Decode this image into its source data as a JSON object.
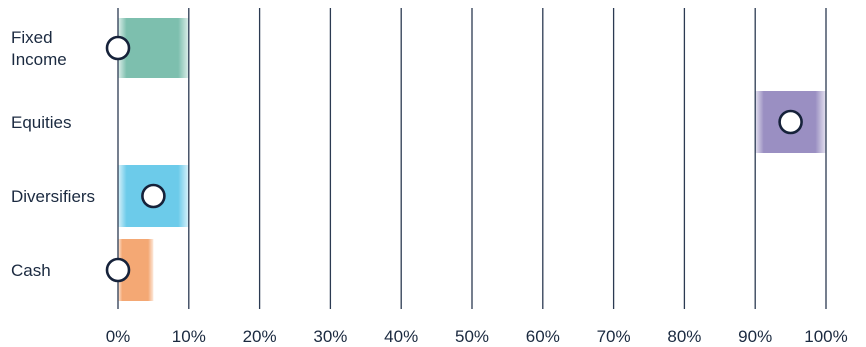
{
  "chart_data": {
    "type": "range-dot",
    "title": "",
    "xlabel": "",
    "ylabel": "",
    "xlim": [
      0,
      100
    ],
    "grid": true,
    "x_ticks": [
      "0%",
      "10%",
      "20%",
      "30%",
      "40%",
      "50%",
      "60%",
      "70%",
      "80%",
      "90%",
      "100%"
    ],
    "x_tick_values": [
      0,
      10,
      20,
      30,
      40,
      50,
      60,
      70,
      80,
      90,
      100
    ],
    "categories": [
      {
        "label_lines": [
          "Fixed",
          "Income"
        ],
        "range": [
          0,
          10
        ],
        "value": 0,
        "color": "#7dbfae"
      },
      {
        "label_lines": [
          "Equities"
        ],
        "range": [
          90,
          100
        ],
        "value": 95,
        "color": "#9a8fc2"
      },
      {
        "label_lines": [
          "Diversifiers"
        ],
        "range": [
          0,
          10
        ],
        "value": 5,
        "color": "#6ccbea"
      },
      {
        "label_lines": [
          "Cash"
        ],
        "range": [
          0,
          5
        ],
        "value": 0,
        "color": "#f4a874"
      }
    ]
  }
}
